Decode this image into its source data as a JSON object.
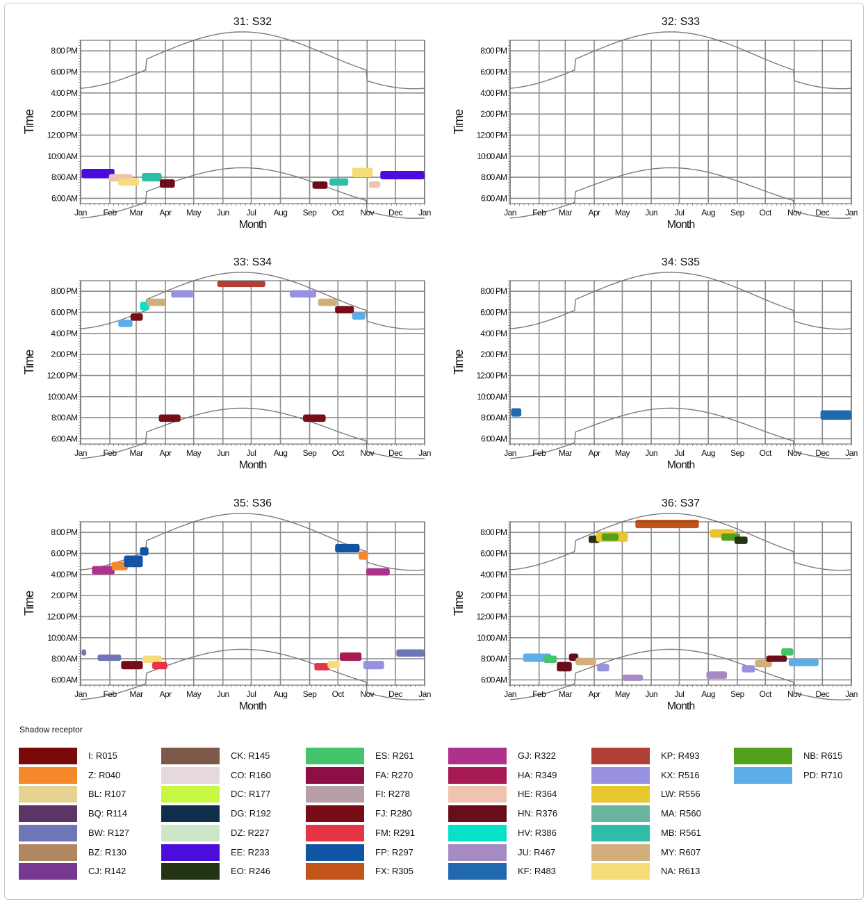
{
  "legend": {
    "title": "Shadow receptor",
    "items": [
      {
        "label": "I: R015",
        "color": "#7a0a0a"
      },
      {
        "label": "Z: R040",
        "color": "#f5892a"
      },
      {
        "label": "BL: R107",
        "color": "#e7d391"
      },
      {
        "label": "BQ: R114",
        "color": "#5a3566"
      },
      {
        "label": "BW: R127",
        "color": "#6e76b8"
      },
      {
        "label": "BZ: R130",
        "color": "#b08761"
      },
      {
        "label": "CJ: R142",
        "color": "#773892"
      },
      {
        "label": "CK: R145",
        "color": "#7e5848"
      },
      {
        "label": "CO: R160",
        "color": "#e5d8df"
      },
      {
        "label": "DC: R177",
        "color": "#c7f740"
      },
      {
        "label": "DG: R192",
        "color": "#0e2e4c"
      },
      {
        "label": "DZ: R227",
        "color": "#cde6c9"
      },
      {
        "label": "EE: R233",
        "color": "#4a0ddb"
      },
      {
        "label": "EO: R246",
        "color": "#233414"
      },
      {
        "label": "ES: R261",
        "color": "#44c46b"
      },
      {
        "label": "FA: R270",
        "color": "#8c1046"
      },
      {
        "label": "FI: R278",
        "color": "#b79fa6"
      },
      {
        "label": "FJ: R280",
        "color": "#780d18"
      },
      {
        "label": "FM: R291",
        "color": "#e53444"
      },
      {
        "label": "FP: R297",
        "color": "#1154a4"
      },
      {
        "label": "FX: R305",
        "color": "#c2541a"
      },
      {
        "label": "GJ: R322",
        "color": "#ae318b"
      },
      {
        "label": "HA: R349",
        "color": "#a81a54"
      },
      {
        "label": "HE: R364",
        "color": "#f0c3b0"
      },
      {
        "label": "HN: R376",
        "color": "#6a0d1a"
      },
      {
        "label": "HV: R386",
        "color": "#08e1c8"
      },
      {
        "label": "JU: R467",
        "color": "#a58ac4"
      },
      {
        "label": "KF: R483",
        "color": "#2069ae"
      },
      {
        "label": "KP: R493",
        "color": "#b03f36"
      },
      {
        "label": "KX: R516",
        "color": "#9791df"
      },
      {
        "label": "LW: R556",
        "color": "#e8c72e"
      },
      {
        "label": "MA: R560",
        "color": "#68b49e"
      },
      {
        "label": "MB: R561",
        "color": "#2fbca8"
      },
      {
        "label": "MY: R607",
        "color": "#d1ae7c"
      },
      {
        "label": "NA: R613",
        "color": "#f5dd78"
      },
      {
        "label": "NB: R615",
        "color": "#53a11b"
      },
      {
        "label": "PD: R710",
        "color": "#5daee8"
      }
    ]
  },
  "chart_data": [
    {
      "type": "scatter",
      "title": "31: S32",
      "xlabel": "Month",
      "ylabel": "Time",
      "x_ticks": [
        "Jan",
        "Feb",
        "Mar",
        "Apr",
        "May",
        "Jun",
        "Jul",
        "Aug",
        "Sep",
        "Oct",
        "Nov",
        "Dec",
        "Jan"
      ],
      "y_ticks": [
        "6:00 AM",
        "8:00 AM",
        "10:00 AM",
        "12:00 PM",
        "2:00 PM",
        "4:00 PM",
        "6:00 PM",
        "8:00 PM"
      ],
      "y_range_hours": [
        5.5,
        21.0
      ],
      "events": [
        {
          "receptor": "EE: R233",
          "color": "#4a0ddb",
          "day_start": 1,
          "day_end": 36,
          "t_start": 7.9,
          "t_end": 8.8
        },
        {
          "receptor": "HE: R364",
          "color": "#f0c3b0",
          "day_start": 30,
          "day_end": 55,
          "t_start": 7.6,
          "t_end": 8.3
        },
        {
          "receptor": "NA: R613",
          "color": "#f5dd78",
          "day_start": 40,
          "day_end": 62,
          "t_start": 7.2,
          "t_end": 7.9
        },
        {
          "receptor": "MB: R561",
          "color": "#2fbca8",
          "day_start": 65,
          "day_end": 86,
          "t_start": 7.6,
          "t_end": 8.4
        },
        {
          "receptor": "HN: R376",
          "color": "#6a0d1a",
          "day_start": 84,
          "day_end": 100,
          "t_start": 7.0,
          "t_end": 7.8
        },
        {
          "receptor": "HN: R376",
          "color": "#6a0d1a",
          "day_start": 246,
          "day_end": 262,
          "t_start": 6.9,
          "t_end": 7.6
        },
        {
          "receptor": "MB: R561",
          "color": "#2fbca8",
          "day_start": 264,
          "day_end": 284,
          "t_start": 7.2,
          "t_end": 7.9
        },
        {
          "receptor": "NA: R613",
          "color": "#f5dd78",
          "day_start": 288,
          "day_end": 310,
          "t_start": 8.0,
          "t_end": 8.9
        },
        {
          "receptor": "HE: R364",
          "color": "#f0c3b0",
          "day_start": 306,
          "day_end": 318,
          "t_start": 7.0,
          "t_end": 7.6
        },
        {
          "receptor": "EE: R233",
          "color": "#4a0ddb",
          "day_start": 318,
          "day_end": 365,
          "t_start": 7.8,
          "t_end": 8.6
        }
      ]
    },
    {
      "type": "scatter",
      "title": "32: S33",
      "xlabel": "Month",
      "ylabel": "Time",
      "x_ticks": [
        "Jan",
        "Feb",
        "Mar",
        "Apr",
        "May",
        "Jun",
        "Jul",
        "Aug",
        "Sep",
        "Oct",
        "Nov",
        "Dec",
        "Jan"
      ],
      "y_ticks": [
        "6:00 AM",
        "8:00 AM",
        "10:00 AM",
        "12:00 PM",
        "2:00 PM",
        "4:00 PM",
        "6:00 PM",
        "8:00 PM"
      ],
      "y_range_hours": [
        5.5,
        21.0
      ],
      "events": []
    },
    {
      "type": "scatter",
      "title": "33: S34",
      "xlabel": "Month",
      "ylabel": "Time",
      "x_ticks": [
        "Jan",
        "Feb",
        "Mar",
        "Apr",
        "May",
        "Jun",
        "Jul",
        "Aug",
        "Sep",
        "Oct",
        "Nov",
        "Dec",
        "Jan"
      ],
      "y_ticks": [
        "6:00 AM",
        "8:00 AM",
        "10:00 AM",
        "12:00 PM",
        "2:00 PM",
        "4:00 PM",
        "6:00 PM",
        "8:00 PM"
      ],
      "y_range_hours": [
        5.5,
        21.0
      ],
      "events": [
        {
          "receptor": "PD: R710",
          "color": "#5daee8",
          "day_start": 40,
          "day_end": 55,
          "t_start": 16.6,
          "t_end": 17.3
        },
        {
          "receptor": "FJ: R280",
          "color": "#780d18",
          "day_start": 53,
          "day_end": 66,
          "t_start": 17.2,
          "t_end": 17.9
        },
        {
          "receptor": "HV: R386",
          "color": "#08e1c8",
          "day_start": 63,
          "day_end": 73,
          "t_start": 18.2,
          "t_end": 19.0
        },
        {
          "receptor": "MY: R607",
          "color": "#d1ae7c",
          "day_start": 70,
          "day_end": 90,
          "t_start": 18.6,
          "t_end": 19.3
        },
        {
          "receptor": "KX: R516",
          "color": "#9791df",
          "day_start": 96,
          "day_end": 120,
          "t_start": 19.4,
          "t_end": 20.1
        },
        {
          "receptor": "KP: R493",
          "color": "#b03f36",
          "day_start": 145,
          "day_end": 196,
          "t_start": 20.4,
          "t_end": 21.0
        },
        {
          "receptor": "KX: R516",
          "color": "#9791df",
          "day_start": 222,
          "day_end": 250,
          "t_start": 19.4,
          "t_end": 20.1
        },
        {
          "receptor": "MY: R607",
          "color": "#d1ae7c",
          "day_start": 252,
          "day_end": 272,
          "t_start": 18.6,
          "t_end": 19.3
        },
        {
          "receptor": "FJ: R280",
          "color": "#780d18",
          "day_start": 270,
          "day_end": 290,
          "t_start": 17.9,
          "t_end": 18.6
        },
        {
          "receptor": "PD: R710",
          "color": "#5daee8",
          "day_start": 288,
          "day_end": 302,
          "t_start": 17.3,
          "t_end": 18.0
        },
        {
          "receptor": "FJ: R280",
          "color": "#780d18",
          "day_start": 83,
          "day_end": 106,
          "t_start": 7.6,
          "t_end": 8.3
        },
        {
          "receptor": "FJ: R280",
          "color": "#780d18",
          "day_start": 236,
          "day_end": 260,
          "t_start": 7.6,
          "t_end": 8.3
        }
      ]
    },
    {
      "type": "scatter",
      "title": "34: S35",
      "xlabel": "Month",
      "ylabel": "Time",
      "x_ticks": [
        "Jan",
        "Feb",
        "Mar",
        "Apr",
        "May",
        "Jun",
        "Jul",
        "Aug",
        "Sep",
        "Oct",
        "Nov",
        "Dec",
        "Jan"
      ],
      "y_ticks": [
        "6:00 AM",
        "8:00 AM",
        "10:00 AM",
        "12:00 PM",
        "2:00 PM",
        "4:00 PM",
        "6:00 PM",
        "8:00 PM"
      ],
      "y_range_hours": [
        5.5,
        21.0
      ],
      "events": [
        {
          "receptor": "KF: R483",
          "color": "#2069ae",
          "day_start": 1,
          "day_end": 12,
          "t_start": 8.1,
          "t_end": 8.9
        },
        {
          "receptor": "KF: R483",
          "color": "#2069ae",
          "day_start": 332,
          "day_end": 365,
          "t_start": 7.8,
          "t_end": 8.7
        }
      ]
    },
    {
      "type": "scatter",
      "title": "35: S36",
      "xlabel": "Month",
      "ylabel": "Time",
      "x_ticks": [
        "Jan",
        "Feb",
        "Mar",
        "Apr",
        "May",
        "Jun",
        "Jul",
        "Aug",
        "Sep",
        "Oct",
        "Nov",
        "Dec",
        "Jan"
      ],
      "y_ticks": [
        "6:00 AM",
        "8:00 AM",
        "10:00 AM",
        "12:00 PM",
        "2:00 PM",
        "4:00 PM",
        "6:00 PM",
        "8:00 PM"
      ],
      "y_range_hours": [
        5.5,
        21.0
      ],
      "events": [
        {
          "receptor": "GJ: R322",
          "color": "#ae318b",
          "day_start": 12,
          "day_end": 36,
          "t_start": 16.0,
          "t_end": 16.8
        },
        {
          "receptor": "Z: R040",
          "color": "#f5892a",
          "day_start": 33,
          "day_end": 50,
          "t_start": 16.4,
          "t_end": 17.2
        },
        {
          "receptor": "FP: R297",
          "color": "#1154a4",
          "day_start": 46,
          "day_end": 66,
          "t_start": 16.7,
          "t_end": 17.8
        },
        {
          "receptor": "FP: R297",
          "color": "#1154a4",
          "day_start": 63,
          "day_end": 72,
          "t_start": 17.8,
          "t_end": 18.6
        },
        {
          "receptor": "FP: R297",
          "color": "#1154a4",
          "day_start": 270,
          "day_end": 296,
          "t_start": 18.1,
          "t_end": 18.9
        },
        {
          "receptor": "Z: R040",
          "color": "#f5892a",
          "day_start": 295,
          "day_end": 305,
          "t_start": 17.4,
          "t_end": 18.2
        },
        {
          "receptor": "GJ: R322",
          "color": "#ae318b",
          "day_start": 303,
          "day_end": 328,
          "t_start": 15.9,
          "t_end": 16.6
        },
        {
          "receptor": "BW: R127",
          "color": "#6e76b8",
          "day_start": 1,
          "day_end": 6,
          "t_start": 8.3,
          "t_end": 8.9
        },
        {
          "receptor": "BW: R127",
          "color": "#6e76b8",
          "day_start": 18,
          "day_end": 43,
          "t_start": 7.8,
          "t_end": 8.4
        },
        {
          "receptor": "FJ: R280",
          "color": "#780d18",
          "day_start": 43,
          "day_end": 66,
          "t_start": 7.0,
          "t_end": 7.8
        },
        {
          "receptor": "NA: R613",
          "color": "#f5dd78",
          "day_start": 66,
          "day_end": 86,
          "t_start": 7.6,
          "t_end": 8.3
        },
        {
          "receptor": "FM: R291",
          "color": "#e53444",
          "day_start": 76,
          "day_end": 92,
          "t_start": 7.0,
          "t_end": 7.7
        },
        {
          "receptor": "FM: R291",
          "color": "#e53444",
          "day_start": 248,
          "day_end": 264,
          "t_start": 6.9,
          "t_end": 7.6
        },
        {
          "receptor": "NA: R613",
          "color": "#f5dd78",
          "day_start": 262,
          "day_end": 275,
          "t_start": 7.1,
          "t_end": 7.8
        },
        {
          "receptor": "HA: R349",
          "color": "#a81a54",
          "day_start": 275,
          "day_end": 298,
          "t_start": 7.8,
          "t_end": 8.6
        },
        {
          "receptor": "KX: R516",
          "color": "#9791df",
          "day_start": 300,
          "day_end": 322,
          "t_start": 7.0,
          "t_end": 7.8
        },
        {
          "receptor": "BW: R127",
          "color": "#6e76b8",
          "day_start": 335,
          "day_end": 365,
          "t_start": 8.2,
          "t_end": 8.9
        }
      ]
    },
    {
      "type": "scatter",
      "title": "36: S37",
      "xlabel": "Month",
      "ylabel": "Time",
      "x_ticks": [
        "Jan",
        "Feb",
        "Mar",
        "Apr",
        "May",
        "Jun",
        "Jul",
        "Aug",
        "Sep",
        "Oct",
        "Nov",
        "Dec",
        "Jan"
      ],
      "y_ticks": [
        "6:00 AM",
        "8:00 AM",
        "10:00 AM",
        "12:00 PM",
        "2:00 PM",
        "4:00 PM",
        "6:00 PM",
        "8:00 PM"
      ],
      "y_range_hours": [
        5.5,
        21.0
      ],
      "events": [
        {
          "receptor": "EO: R246",
          "color": "#233414",
          "day_start": 84,
          "day_end": 96,
          "t_start": 19.0,
          "t_end": 19.7
        },
        {
          "receptor": "LW: R556",
          "color": "#e8c72e",
          "day_start": 92,
          "day_end": 126,
          "t_start": 19.1,
          "t_end": 20.0
        },
        {
          "receptor": "NB: R615",
          "color": "#53a11b",
          "day_start": 98,
          "day_end": 116,
          "t_start": 19.2,
          "t_end": 19.9
        },
        {
          "receptor": "FX: R305",
          "color": "#c2541a",
          "day_start": 134,
          "day_end": 202,
          "t_start": 20.4,
          "t_end": 21.2
        },
        {
          "receptor": "LW: R556",
          "color": "#e8c72e",
          "day_start": 214,
          "day_end": 240,
          "t_start": 19.5,
          "t_end": 20.3
        },
        {
          "receptor": "NB: R615",
          "color": "#53a11b",
          "day_start": 226,
          "day_end": 246,
          "t_start": 19.2,
          "t_end": 19.9
        },
        {
          "receptor": "EO: R246",
          "color": "#233414",
          "day_start": 240,
          "day_end": 254,
          "t_start": 18.9,
          "t_end": 19.6
        },
        {
          "receptor": "PD: R710",
          "color": "#5daee8",
          "day_start": 14,
          "day_end": 44,
          "t_start": 7.7,
          "t_end": 8.5
        },
        {
          "receptor": "ES: R261",
          "color": "#44c46b",
          "day_start": 36,
          "day_end": 50,
          "t_start": 7.6,
          "t_end": 8.3
        },
        {
          "receptor": "HN: R376",
          "color": "#6a0d1a",
          "day_start": 50,
          "day_end": 66,
          "t_start": 6.8,
          "t_end": 7.7
        },
        {
          "receptor": "HN: R376",
          "color": "#6a0d1a",
          "day_start": 63,
          "day_end": 73,
          "t_start": 7.8,
          "t_end": 8.5
        },
        {
          "receptor": "MY: R607",
          "color": "#d1ae7c",
          "day_start": 70,
          "day_end": 92,
          "t_start": 7.4,
          "t_end": 8.1
        },
        {
          "receptor": "KX: R516",
          "color": "#9791df",
          "day_start": 93,
          "day_end": 106,
          "t_start": 6.8,
          "t_end": 7.5
        },
        {
          "receptor": "JU: R467",
          "color": "#a58ac4",
          "day_start": 120,
          "day_end": 142,
          "t_start": 5.9,
          "t_end": 6.5
        },
        {
          "receptor": "JU: R467",
          "color": "#a58ac4",
          "day_start": 210,
          "day_end": 232,
          "t_start": 6.1,
          "t_end": 6.8
        },
        {
          "receptor": "KX: R516",
          "color": "#9791df",
          "day_start": 248,
          "day_end": 262,
          "t_start": 6.7,
          "t_end": 7.4
        },
        {
          "receptor": "MY: R607",
          "color": "#d1ae7c",
          "day_start": 262,
          "day_end": 280,
          "t_start": 7.2,
          "t_end": 7.9
        },
        {
          "receptor": "HN: R376",
          "color": "#6a0d1a",
          "day_start": 274,
          "day_end": 296,
          "t_start": 7.7,
          "t_end": 8.3
        },
        {
          "receptor": "ES: R261",
          "color": "#44c46b",
          "day_start": 290,
          "day_end": 303,
          "t_start": 8.3,
          "t_end": 9.0
        },
        {
          "receptor": "PD: R710",
          "color": "#5daee8",
          "day_start": 298,
          "day_end": 330,
          "t_start": 7.3,
          "t_end": 8.0
        }
      ]
    }
  ]
}
